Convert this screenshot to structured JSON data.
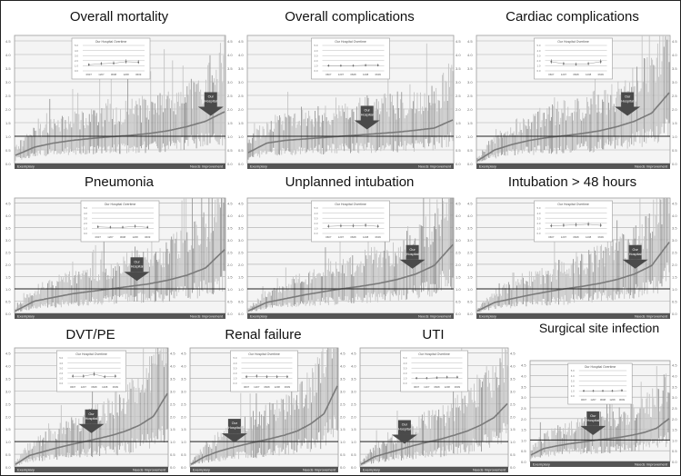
{
  "chart_data": {
    "type": "caterpillar",
    "y_ticks": [
      "0.0",
      "0.5",
      "1.0",
      "1.5",
      "2.0",
      "2.5",
      "3.0",
      "3.5",
      "4.0",
      "4.5"
    ],
    "ylim": [
      0,
      4.7
    ],
    "reference_line": 1.0,
    "left_label": "Exemplary",
    "right_label": "Needs Improvement",
    "marker_label": "Our Hospital",
    "inset_title": "Our Hospital Overtime",
    "inset_x": [
      "0607",
      "1207",
      "0608",
      "1208",
      "0609"
    ],
    "inset_y_ticks": [
      "0.0",
      "1.0",
      "2.0",
      "3.0",
      "4.0",
      "5.0"
    ],
    "panels": [
      {
        "title": "Overall mortality",
        "hospital_rank": 0.93,
        "or_quantiles": [
          0.3,
          0.6,
          0.75,
          0.85,
          0.92,
          0.98,
          1.03,
          1.1,
          1.2,
          1.35,
          1.55,
          1.9
        ],
        "inset": [
          1.2,
          1.4,
          1.5,
          1.8,
          1.7
        ]
      },
      {
        "title": "Overall complications",
        "hospital_rank": 0.58,
        "or_quantiles": [
          0.4,
          0.75,
          0.85,
          0.9,
          0.95,
          1.0,
          1.05,
          1.1,
          1.15,
          1.22,
          1.3,
          1.6
        ],
        "inset": [
          1.0,
          1.0,
          1.0,
          1.1,
          1.1
        ]
      },
      {
        "title": "Cardiac complications",
        "hospital_rank": 0.78,
        "or_quantiles": [
          0.1,
          0.5,
          0.7,
          0.85,
          0.95,
          1.02,
          1.1,
          1.2,
          1.35,
          1.55,
          1.85,
          2.6
        ],
        "inset": [
          1.8,
          1.4,
          1.3,
          1.4,
          1.8
        ]
      },
      {
        "title": "Pneumonia",
        "hospital_rank": 0.58,
        "or_quantiles": [
          0.1,
          0.5,
          0.65,
          0.8,
          0.9,
          1.0,
          1.1,
          1.2,
          1.35,
          1.55,
          1.85,
          2.6
        ],
        "inset": [
          1.3,
          1.2,
          1.2,
          1.4,
          1.2
        ]
      },
      {
        "title": "Unplanned intubation",
        "hospital_rank": 0.8,
        "or_quantiles": [
          0.1,
          0.45,
          0.6,
          0.75,
          0.88,
          1.0,
          1.1,
          1.22,
          1.38,
          1.6,
          1.95,
          2.8
        ],
        "inset": [
          1.4,
          1.5,
          1.5,
          1.6,
          1.4
        ]
      },
      {
        "title": "Intubation > 48 hours",
        "hospital_rank": 0.82,
        "or_quantiles": [
          0.1,
          0.45,
          0.6,
          0.75,
          0.88,
          1.0,
          1.1,
          1.22,
          1.38,
          1.6,
          1.95,
          2.9
        ],
        "inset": [
          1.5,
          1.6,
          1.7,
          1.8,
          1.6
        ]
      },
      {
        "title": "DVT/PE",
        "hospital_rank": 0.5,
        "or_quantiles": [
          0.1,
          0.45,
          0.6,
          0.75,
          0.88,
          1.0,
          1.12,
          1.25,
          1.42,
          1.65,
          2.0,
          2.9
        ],
        "inset": [
          1.4,
          1.4,
          1.8,
          1.3,
          1.4
        ]
      },
      {
        "title": "Renal failure",
        "hospital_rank": 0.3,
        "or_quantiles": [
          0.1,
          0.4,
          0.6,
          0.75,
          0.88,
          1.0,
          1.12,
          1.25,
          1.42,
          1.7,
          2.1,
          3.2
        ],
        "inset": [
          1.3,
          1.4,
          1.3,
          1.3,
          1.3
        ]
      },
      {
        "title": "UTI",
        "hospital_rank": 0.3,
        "or_quantiles": [
          0.1,
          0.4,
          0.55,
          0.7,
          0.85,
          0.98,
          1.1,
          1.25,
          1.42,
          1.65,
          1.95,
          2.5
        ],
        "inset": [
          1.0,
          1.0,
          1.1,
          1.2,
          1.2
        ]
      },
      {
        "title": "Surgical site infection",
        "hospital_rank": 0.45,
        "or_quantiles": [
          0.3,
          0.6,
          0.72,
          0.82,
          0.9,
          0.98,
          1.05,
          1.12,
          1.22,
          1.35,
          1.55,
          2.0
        ],
        "inset": [
          1.0,
          1.0,
          1.0,
          1.0,
          1.1
        ]
      }
    ]
  }
}
